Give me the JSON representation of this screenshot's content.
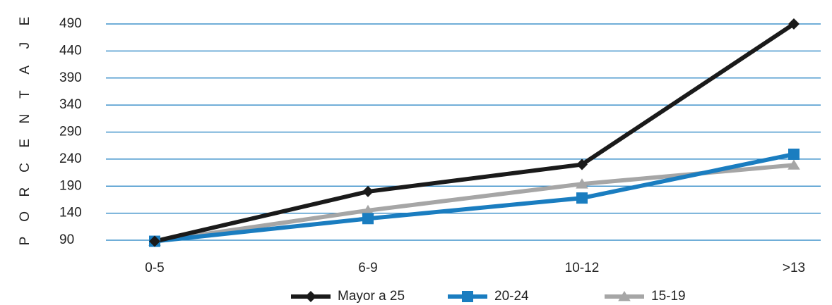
{
  "chart_data": {
    "type": "line",
    "title": "",
    "xlabel": "",
    "ylabel": "PORCENTAJE",
    "categories": [
      "0-5",
      "6-9",
      "10-12",
      ">13"
    ],
    "y_ticks": [
      90,
      140,
      190,
      240,
      290,
      340,
      390,
      440,
      490
    ],
    "ylim": [
      90,
      490
    ],
    "grid": true,
    "legend_position": "bottom",
    "series": [
      {
        "name": "Mayor a 25",
        "values": [
          88,
          180,
          230,
          490
        ],
        "color": "#1a1a1a",
        "marker": "diamond"
      },
      {
        "name": "20-24",
        "values": [
          88,
          130,
          168,
          249
        ],
        "color": "#1a7dc0",
        "marker": "square"
      },
      {
        "name": "15-19",
        "values": [
          88,
          145,
          194,
          229
        ],
        "color": "#a6a6a6",
        "marker": "triangle"
      }
    ],
    "grid_color": "#1a7dc0"
  }
}
